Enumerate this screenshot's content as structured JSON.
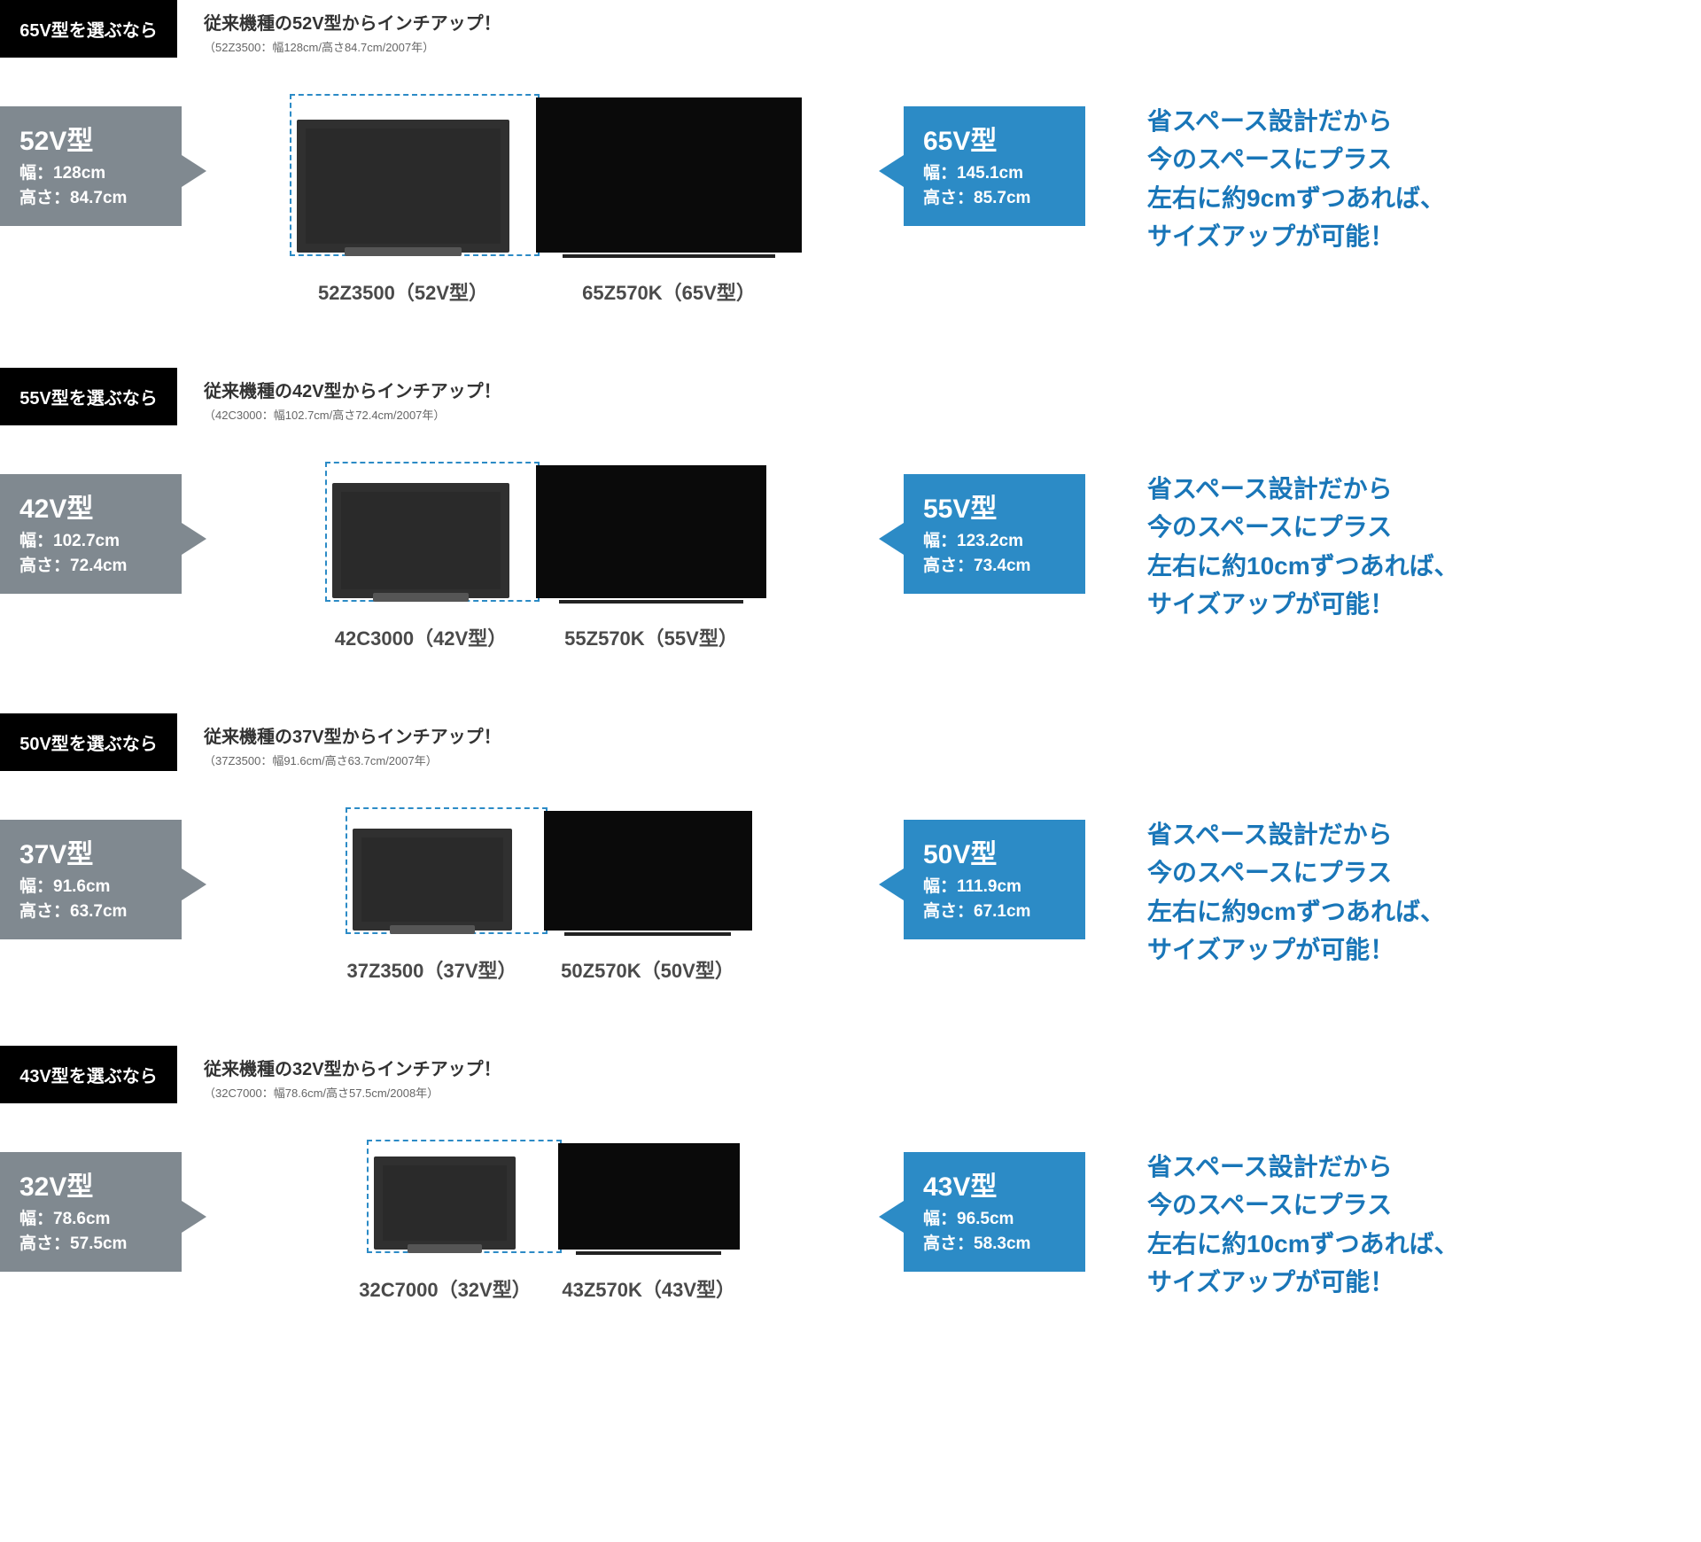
{
  "colors": {
    "black": "#000000",
    "grey_callout": "#808990",
    "blue_callout": "#2c8bc6",
    "promo_blue": "#1976b8",
    "dashed_border": "#2c8bc6"
  },
  "sections": [
    {
      "tag": "65V型を選ぶなら",
      "header_main": "従来機種の52V型からインチアップ！",
      "header_sub": "（52Z3500：幅128cm/高さ84.7cm/2007年）",
      "old": {
        "size": "52V型",
        "width_line": "幅：128cm",
        "height_line": "高さ：84.7cm",
        "label": "52Z3500（52V型）",
        "tv_w": 240,
        "tv_h": 150
      },
      "new": {
        "size": "65V型",
        "width_line": "幅：145.1cm",
        "height_line": "高さ：85.7cm",
        "label": "65Z570K（65V型）",
        "tv_w": 300,
        "tv_h": 175
      },
      "promo": "省スペース設計だから\n今のスペースにプラス\n左右に約9cmずつあれば、\nサイズアップが可能！"
    },
    {
      "tag": "55V型を選ぶなら",
      "header_main": "従来機種の42V型からインチアップ！",
      "header_sub": "（42C3000：幅102.7cm/高さ72.4cm/2007年）",
      "old": {
        "size": "42V型",
        "width_line": "幅：102.7cm",
        "height_line": "高さ：72.4cm",
        "label": "42C3000（42V型）",
        "tv_w": 200,
        "tv_h": 130
      },
      "new": {
        "size": "55V型",
        "width_line": "幅：123.2cm",
        "height_line": "高さ：73.4cm",
        "label": "55Z570K（55V型）",
        "tv_w": 260,
        "tv_h": 150
      },
      "promo": "省スペース設計だから\n今のスペースにプラス\n左右に約10cmずつあれば、\nサイズアップが可能！"
    },
    {
      "tag": "50V型を選ぶなら",
      "header_main": "従来機種の37V型からインチアップ！",
      "header_sub": "（37Z3500：幅91.6cm/高さ63.7cm/2007年）",
      "old": {
        "size": "37V型",
        "width_line": "幅：91.6cm",
        "height_line": "高さ：63.7cm",
        "label": "37Z3500（37V型）",
        "tv_w": 180,
        "tv_h": 115
      },
      "new": {
        "size": "50V型",
        "width_line": "幅：111.9cm",
        "height_line": "高さ：67.1cm",
        "label": "50Z570K（50V型）",
        "tv_w": 235,
        "tv_h": 135
      },
      "promo": "省スペース設計だから\n今のスペースにプラス\n左右に約9cmずつあれば、\nサイズアップが可能！"
    },
    {
      "tag": "43V型を選ぶなら",
      "header_main": "従来機種の32V型からインチアップ！",
      "header_sub": "（32C7000：幅78.6cm/高さ57.5cm/2008年）",
      "old": {
        "size": "32V型",
        "width_line": "幅：78.6cm",
        "height_line": "高さ：57.5cm",
        "label": "32C7000（32V型）",
        "tv_w": 160,
        "tv_h": 105
      },
      "new": {
        "size": "43V型",
        "width_line": "幅：96.5cm",
        "height_line": "高さ：58.3cm",
        "label": "43Z570K（43V型）",
        "tv_w": 205,
        "tv_h": 120
      },
      "promo": "省スペース設計だから\n今のスペースにプラス\n左右に約10cmずつあれば、\nサイズアップが可能！"
    }
  ]
}
